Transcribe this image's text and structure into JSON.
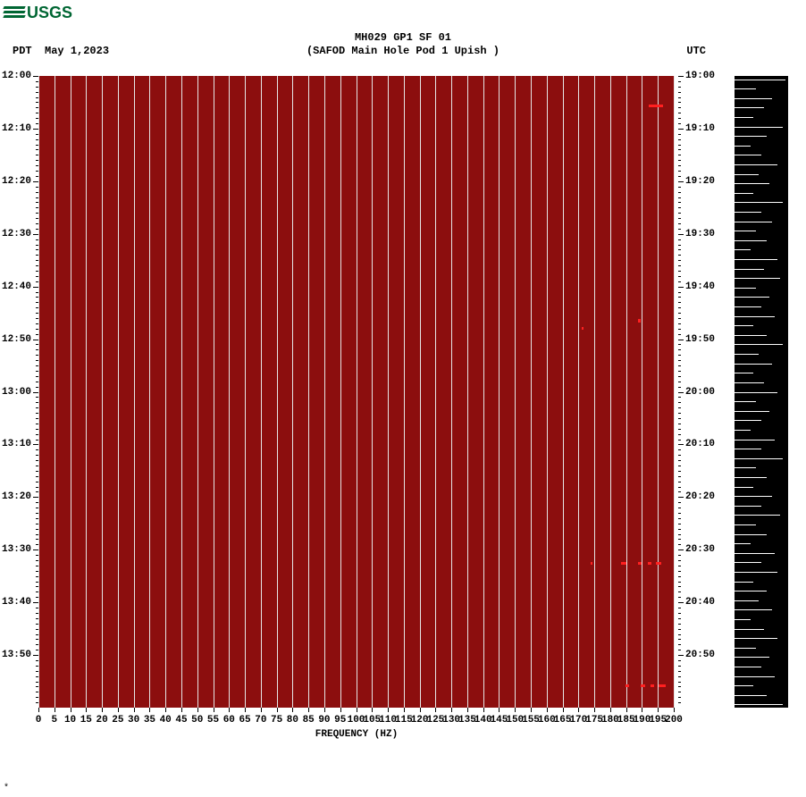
{
  "logo": {
    "text": "USGS",
    "color": "#006633"
  },
  "title": {
    "line1": "MH029 GP1 SF 01",
    "line2": "(SAFOD Main Hole Pod 1 Upish )"
  },
  "left_tz": "PDT",
  "date": "May 1,2023",
  "right_tz": "UTC",
  "plot": {
    "bg_color": "#8c0e0e",
    "gridline_color": "#e6e6e6",
    "x_min": 0,
    "x_max": 200,
    "x_step": 5,
    "x_title": "FREQUENCY (HZ)",
    "left_ticks": [
      "12:00",
      "12:10",
      "12:20",
      "12:30",
      "12:40",
      "12:50",
      "13:00",
      "13:10",
      "13:20",
      "13:30",
      "13:40",
      "13:50"
    ],
    "right_ticks": [
      "19:00",
      "19:10",
      "19:20",
      "19:30",
      "19:40",
      "19:50",
      "20:00",
      "20:10",
      "20:20",
      "20:30",
      "20:40",
      "20:50"
    ],
    "minor_per_major": 10,
    "specks": [
      {
        "fx": 0.97,
        "fy": 0.045,
        "w": 16,
        "h": 3
      },
      {
        "fx": 0.945,
        "fy": 0.385,
        "w": 3,
        "h": 4
      },
      {
        "fx": 0.855,
        "fy": 0.398,
        "w": 2,
        "h": 3
      },
      {
        "fx": 0.87,
        "fy": 0.77,
        "w": 2,
        "h": 3
      },
      {
        "fx": 0.92,
        "fy": 0.77,
        "w": 6,
        "h": 3
      },
      {
        "fx": 0.945,
        "fy": 0.77,
        "w": 4,
        "h": 3
      },
      {
        "fx": 0.96,
        "fy": 0.77,
        "w": 4,
        "h": 3
      },
      {
        "fx": 0.975,
        "fy": 0.77,
        "w": 6,
        "h": 3
      },
      {
        "fx": 0.925,
        "fy": 0.963,
        "w": 4,
        "h": 3
      },
      {
        "fx": 0.95,
        "fy": 0.963,
        "w": 5,
        "h": 3
      },
      {
        "fx": 0.965,
        "fy": 0.963,
        "w": 4,
        "h": 3
      },
      {
        "fx": 0.98,
        "fy": 0.963,
        "w": 8,
        "h": 3
      }
    ]
  },
  "side": {
    "bg": "#000000",
    "line_color": "#ffffff",
    "lines": [
      {
        "y": 0.005,
        "len": 0.95
      },
      {
        "y": 0.02,
        "len": 0.4
      },
      {
        "y": 0.035,
        "len": 0.7
      },
      {
        "y": 0.05,
        "len": 0.55
      },
      {
        "y": 0.065,
        "len": 0.35
      },
      {
        "y": 0.08,
        "len": 0.9
      },
      {
        "y": 0.095,
        "len": 0.6
      },
      {
        "y": 0.11,
        "len": 0.3
      },
      {
        "y": 0.125,
        "len": 0.5
      },
      {
        "y": 0.14,
        "len": 0.8
      },
      {
        "y": 0.155,
        "len": 0.45
      },
      {
        "y": 0.17,
        "len": 0.65
      },
      {
        "y": 0.185,
        "len": 0.35
      },
      {
        "y": 0.2,
        "len": 0.9
      },
      {
        "y": 0.215,
        "len": 0.5
      },
      {
        "y": 0.23,
        "len": 0.7
      },
      {
        "y": 0.245,
        "len": 0.4
      },
      {
        "y": 0.26,
        "len": 0.6
      },
      {
        "y": 0.275,
        "len": 0.3
      },
      {
        "y": 0.29,
        "len": 0.8
      },
      {
        "y": 0.305,
        "len": 0.55
      },
      {
        "y": 0.32,
        "len": 0.85
      },
      {
        "y": 0.335,
        "len": 0.4
      },
      {
        "y": 0.35,
        "len": 0.65
      },
      {
        "y": 0.365,
        "len": 0.5
      },
      {
        "y": 0.38,
        "len": 0.75
      },
      {
        "y": 0.395,
        "len": 0.35
      },
      {
        "y": 0.41,
        "len": 0.6
      },
      {
        "y": 0.425,
        "len": 0.9
      },
      {
        "y": 0.44,
        "len": 0.45
      },
      {
        "y": 0.455,
        "len": 0.7
      },
      {
        "y": 0.47,
        "len": 0.35
      },
      {
        "y": 0.485,
        "len": 0.55
      },
      {
        "y": 0.5,
        "len": 0.8
      },
      {
        "y": 0.515,
        "len": 0.4
      },
      {
        "y": 0.53,
        "len": 0.65
      },
      {
        "y": 0.545,
        "len": 0.5
      },
      {
        "y": 0.56,
        "len": 0.3
      },
      {
        "y": 0.575,
        "len": 0.75
      },
      {
        "y": 0.59,
        "len": 0.5
      },
      {
        "y": 0.605,
        "len": 0.9
      },
      {
        "y": 0.62,
        "len": 0.4
      },
      {
        "y": 0.635,
        "len": 0.6
      },
      {
        "y": 0.65,
        "len": 0.35
      },
      {
        "y": 0.665,
        "len": 0.7
      },
      {
        "y": 0.68,
        "len": 0.5
      },
      {
        "y": 0.695,
        "len": 0.85
      },
      {
        "y": 0.71,
        "len": 0.4
      },
      {
        "y": 0.725,
        "len": 0.6
      },
      {
        "y": 0.74,
        "len": 0.3
      },
      {
        "y": 0.755,
        "len": 0.75
      },
      {
        "y": 0.77,
        "len": 0.5
      },
      {
        "y": 0.785,
        "len": 0.8
      },
      {
        "y": 0.8,
        "len": 0.35
      },
      {
        "y": 0.815,
        "len": 0.6
      },
      {
        "y": 0.83,
        "len": 0.45
      },
      {
        "y": 0.845,
        "len": 0.7
      },
      {
        "y": 0.86,
        "len": 0.3
      },
      {
        "y": 0.875,
        "len": 0.55
      },
      {
        "y": 0.89,
        "len": 0.8
      },
      {
        "y": 0.905,
        "len": 0.4
      },
      {
        "y": 0.92,
        "len": 0.65
      },
      {
        "y": 0.935,
        "len": 0.5
      },
      {
        "y": 0.95,
        "len": 0.75
      },
      {
        "y": 0.965,
        "len": 0.35
      },
      {
        "y": 0.98,
        "len": 0.6
      },
      {
        "y": 0.995,
        "len": 0.9
      }
    ]
  },
  "tiny": "*"
}
